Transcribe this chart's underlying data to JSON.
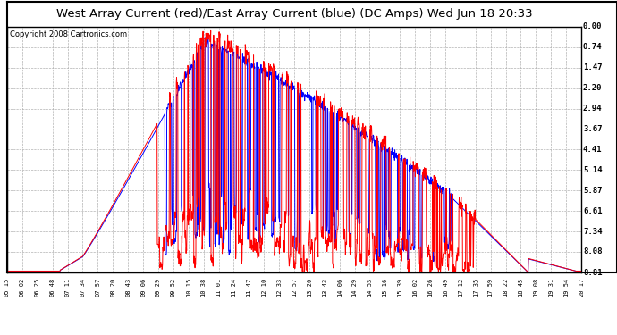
{
  "title": "West Array Current (red)/East Array Current (blue) (DC Amps) Wed Jun 18 20:33",
  "copyright": "Copyright 2008 Cartronics.com",
  "yticks": [
    0.0,
    0.74,
    1.47,
    2.2,
    2.94,
    3.67,
    4.41,
    5.14,
    5.87,
    6.61,
    7.34,
    8.08,
    8.81
  ],
  "ylabel_right": [
    "8.81",
    "8.08",
    "7.34",
    "6.61",
    "5.87",
    "5.14",
    "4.41",
    "3.67",
    "2.94",
    "2.20",
    "1.47",
    "0.74",
    "0.00"
  ],
  "ymax": 8.81,
  "ymin": 0.0,
  "xtick_labels": [
    "05:15",
    "06:02",
    "06:25",
    "06:48",
    "07:11",
    "07:34",
    "07:57",
    "08:20",
    "08:43",
    "09:06",
    "09:29",
    "09:52",
    "10:15",
    "10:38",
    "11:01",
    "11:24",
    "11:47",
    "12:10",
    "12:33",
    "12:57",
    "13:20",
    "13:43",
    "14:06",
    "14:29",
    "14:53",
    "15:16",
    "15:39",
    "16:02",
    "16:26",
    "16:49",
    "17:12",
    "17:35",
    "17:59",
    "18:22",
    "18:45",
    "19:08",
    "19:31",
    "19:54",
    "20:17"
  ],
  "bg_color": "#ffffff",
  "plot_bg_color": "#ffffff",
  "grid_color": "#aaaaaa",
  "border_color": "#000000",
  "red_color": "#ff0000",
  "blue_color": "#0000ff",
  "title_bg_color": "#dddddd",
  "title_fontsize": 9.5,
  "copyright_fontsize": 6.0,
  "fig_width": 6.9,
  "fig_height": 3.75,
  "fig_dpi": 100
}
